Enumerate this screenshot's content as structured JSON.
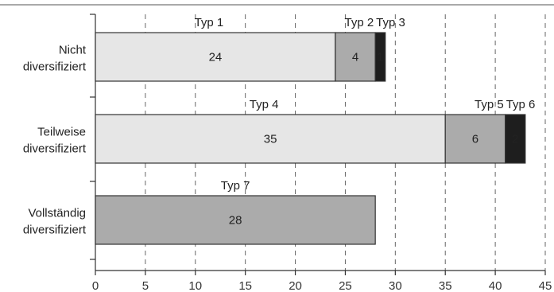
{
  "chart_data": {
    "type": "bar",
    "orientation": "horizontal",
    "stacked": true,
    "xlim": [
      0,
      45
    ],
    "xticks": [
      "0",
      "5",
      "10",
      "15",
      "20",
      "25",
      "30",
      "35",
      "40",
      "45"
    ],
    "grid": "vertical dashed",
    "categories": [
      {
        "line1": "Nicht",
        "line2": "diversifiziert",
        "segments": [
          {
            "value": 24,
            "label": "24",
            "type": "Typ 1",
            "color": "#e6e6e6",
            "textColor": "#222222"
          },
          {
            "value": 4,
            "label": "4",
            "type": "Typ 2",
            "color": "#ababab",
            "textColor": "#222222"
          },
          {
            "value": 1,
            "label": "1",
            "type": "Typ 3",
            "color": "#1e1e1e",
            "textColor": "#ffffff"
          }
        ]
      },
      {
        "line1": "Teilweise",
        "line2": "diversifiziert",
        "segments": [
          {
            "value": 35,
            "label": "35",
            "type": "Typ 4",
            "color": "#e6e6e6",
            "textColor": "#222222"
          },
          {
            "value": 6,
            "label": "6",
            "type": "Typ 5",
            "color": "#ababab",
            "textColor": "#222222"
          },
          {
            "value": 2,
            "label": "2",
            "type": "Typ 6",
            "color": "#1e1e1e",
            "textColor": "#ffffff"
          }
        ]
      },
      {
        "line1": "Vollständig",
        "line2": "diversifiziert",
        "segments": [
          {
            "value": 28,
            "label": "28",
            "type": "Typ 7",
            "color": "#ababab",
            "textColor": "#222222"
          }
        ]
      }
    ]
  }
}
